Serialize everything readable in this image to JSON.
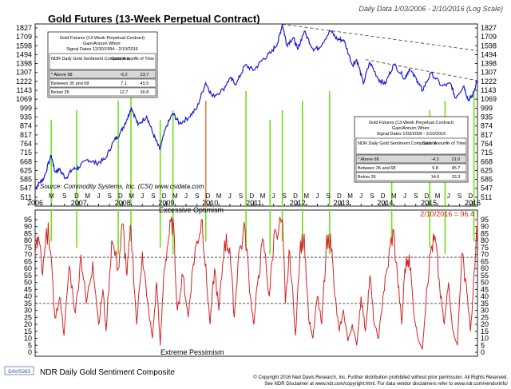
{
  "header": {
    "title": "Gold Futures (13-Week Perpetual Contract)",
    "subtitle": "Daily Data 1/03/2006 - 2/10/2016 (Log Scale)"
  },
  "colors": {
    "price_line": "#1b1bd6",
    "sentiment_line": "#d42222",
    "signal_line": "#6fe01a",
    "signal_line_alt": "#d9834a",
    "axis": "#222222",
    "grid": "#555555"
  },
  "chart_data": [
    {
      "type": "line",
      "title": "Gold Futures (13-Week Perpetual Contract)",
      "scale": "log",
      "yticks": [
        511,
        547,
        585,
        625,
        668,
        715,
        764,
        817,
        874,
        935,
        999,
        1069,
        1143,
        1222,
        1307,
        1398,
        1494,
        1598,
        1709,
        1827
      ],
      "month_ticks": [
        {
          "t": 2006.37,
          "l": "M"
        },
        {
          "t": 2006.67,
          "l": "S"
        },
        {
          "t": 2006.95,
          "l": "D"
        },
        {
          "t": 2007.2,
          "l": "M"
        },
        {
          "t": 2007.45,
          "l": "J"
        },
        {
          "t": 2007.7,
          "l": "S"
        },
        {
          "t": 2007.95,
          "l": "D"
        },
        {
          "t": 2008.2,
          "l": "M"
        },
        {
          "t": 2008.45,
          "l": "J"
        },
        {
          "t": 2008.7,
          "l": "S"
        },
        {
          "t": 2008.95,
          "l": "D"
        },
        {
          "t": 2009.2,
          "l": "M"
        },
        {
          "t": 2009.45,
          "l": "J"
        },
        {
          "t": 2009.7,
          "l": "S"
        },
        {
          "t": 2009.95,
          "l": "D"
        },
        {
          "t": 2010.2,
          "l": "M"
        },
        {
          "t": 2010.45,
          "l": "J"
        },
        {
          "t": 2010.7,
          "l": "S"
        },
        {
          "t": 2010.95,
          "l": "D"
        },
        {
          "t": 2011.2,
          "l": "M"
        },
        {
          "t": 2011.45,
          "l": "J"
        },
        {
          "t": 2011.7,
          "l": "S"
        },
        {
          "t": 2011.95,
          "l": "D"
        },
        {
          "t": 2012.2,
          "l": "M"
        },
        {
          "t": 2012.45,
          "l": "J"
        },
        {
          "t": 2012.7,
          "l": "S"
        },
        {
          "t": 2012.95,
          "l": "D"
        },
        {
          "t": 2013.2,
          "l": "M"
        },
        {
          "t": 2013.45,
          "l": "J"
        },
        {
          "t": 2013.7,
          "l": "S"
        },
        {
          "t": 2013.95,
          "l": "D"
        },
        {
          "t": 2014.2,
          "l": "M"
        },
        {
          "t": 2014.45,
          "l": "J"
        },
        {
          "t": 2014.7,
          "l": "S"
        },
        {
          "t": 2014.95,
          "l": "D"
        },
        {
          "t": 2015.2,
          "l": "M"
        },
        {
          "t": 2015.45,
          "l": "J"
        },
        {
          "t": 2015.7,
          "l": "S"
        },
        {
          "t": 2015.95,
          "l": "D"
        }
      ],
      "year_labels": [
        "2006",
        "2007",
        "2008",
        "2009",
        "2010",
        "2011",
        "2012",
        "2013",
        "2014",
        "2015",
        "2016"
      ],
      "source": "Source: Commodity Systems, Inc. (CSI) www.csidata.com",
      "series": [
        {
          "name": "Gold Futures",
          "points": [
            [
              2006.0,
              545
            ],
            [
              2006.1,
              570
            ],
            [
              2006.2,
              590
            ],
            [
              2006.37,
              700
            ],
            [
              2006.45,
              620
            ],
            [
              2006.55,
              630
            ],
            [
              2006.7,
              590
            ],
            [
              2006.85,
              630
            ],
            [
              2007.0,
              640
            ],
            [
              2007.2,
              680
            ],
            [
              2007.4,
              660
            ],
            [
              2007.6,
              680
            ],
            [
              2007.8,
              780
            ],
            [
              2007.95,
              830
            ],
            [
              2008.1,
              920
            ],
            [
              2008.2,
              1005
            ],
            [
              2008.35,
              880
            ],
            [
              2008.55,
              940
            ],
            [
              2008.7,
              820
            ],
            [
              2008.85,
              730
            ],
            [
              2009.0,
              870
            ],
            [
              2009.15,
              960
            ],
            [
              2009.3,
              890
            ],
            [
              2009.5,
              930
            ],
            [
              2009.7,
              1000
            ],
            [
              2009.9,
              1210
            ],
            [
              2010.05,
              1090
            ],
            [
              2010.3,
              1150
            ],
            [
              2010.45,
              1250
            ],
            [
              2010.6,
              1200
            ],
            [
              2010.8,
              1380
            ],
            [
              2011.0,
              1330
            ],
            [
              2011.2,
              1440
            ],
            [
              2011.4,
              1520
            ],
            [
              2011.55,
              1640
            ],
            [
              2011.65,
              1880
            ],
            [
              2011.75,
              1610
            ],
            [
              2011.9,
              1700
            ],
            [
              2012.0,
              1550
            ],
            [
              2012.15,
              1780
            ],
            [
              2012.35,
              1560
            ],
            [
              2012.5,
              1580
            ],
            [
              2012.75,
              1790
            ],
            [
              2012.9,
              1680
            ],
            [
              2013.05,
              1670
            ],
            [
              2013.25,
              1380
            ],
            [
              2013.35,
              1440
            ],
            [
              2013.5,
              1200
            ],
            [
              2013.65,
              1410
            ],
            [
              2013.85,
              1240
            ],
            [
              2014.0,
              1200
            ],
            [
              2014.2,
              1390
            ],
            [
              2014.45,
              1250
            ],
            [
              2014.55,
              1340
            ],
            [
              2014.75,
              1220
            ],
            [
              2014.85,
              1140
            ],
            [
              2015.05,
              1300
            ],
            [
              2015.3,
              1180
            ],
            [
              2015.5,
              1200
            ],
            [
              2015.6,
              1080
            ],
            [
              2015.8,
              1180
            ],
            [
              2015.9,
              1060
            ],
            [
              2016.0,
              1100
            ],
            [
              2016.11,
              1240
            ]
          ]
        }
      ],
      "resistance_lines": [
        {
          "from": [
            2011.65,
            1880
          ],
          "to": [
            2016.11,
            1540
          ]
        },
        {
          "from": [
            2013.55,
            1440
          ],
          "to": [
            2016.11,
            1230
          ]
        }
      ],
      "tables": [
        {
          "title_lines": [
            "Gold Futures (13-Week Perpetual Contract)",
            "Gain/Annum When:",
            "Signal Dates 12/30/1994 - 2/10/2016"
          ],
          "headers": [
            "NDR Daily Gold Sentiment Composite is",
            "Gain/ Annum",
            "% of Time"
          ],
          "rows": [
            [
              "* Above 68",
              "-6.2",
              "23.7"
            ],
            [
              "Between 35 and 68",
              "7.1",
              "45.5"
            ],
            [
              "Below 35",
              "12.7",
              "30.8"
            ]
          ]
        },
        {
          "title_lines": [
            "Gold Futures (13-Week Perpetual Contract)",
            "Gain/Annum When:",
            "Signal Dates 1/03/2006 - 2/10/2016"
          ],
          "headers": [
            "NDR Daily Gold Sentiment Composite is",
            "Gain/ Annum",
            "% of Time"
          ],
          "rows": [
            [
              "* Above 68",
              "-4.3",
              "21.0"
            ],
            [
              "Between 35 and 68",
              "9.8",
              "45.7"
            ],
            [
              "Below 35",
              "14.6",
              "33.3"
            ]
          ]
        }
      ]
    },
    {
      "type": "line",
      "title": "NDR Daily Gold Sentiment Composite",
      "ylim": [
        0,
        100
      ],
      "yticks": [
        0,
        5,
        10,
        15,
        20,
        25,
        30,
        35,
        40,
        45,
        50,
        55,
        60,
        65,
        70,
        75,
        80,
        85,
        90,
        95
      ],
      "reference_lines": [
        68,
        35
      ],
      "annotations": [
        "Excessive Optimism",
        "Extreme Pessimism",
        "2/10/2016 = 96.4"
      ],
      "series": [
        {
          "name": "NDR Daily Gold Sentiment Composite",
          "points": [
            [
              2006.0,
              70
            ],
            [
              2006.08,
              82
            ],
            [
              2006.17,
              55
            ],
            [
              2006.3,
              93
            ],
            [
              2006.45,
              25
            ],
            [
              2006.58,
              38
            ],
            [
              2006.66,
              12
            ],
            [
              2006.78,
              62
            ],
            [
              2006.92,
              28
            ],
            [
              2007.05,
              70
            ],
            [
              2007.17,
              35
            ],
            [
              2007.32,
              65
            ],
            [
              2007.45,
              20
            ],
            [
              2007.55,
              45
            ],
            [
              2007.62,
              15
            ],
            [
              2007.75,
              80
            ],
            [
              2007.9,
              60
            ],
            [
              2008.0,
              92
            ],
            [
              2008.1,
              55
            ],
            [
              2008.19,
              89
            ],
            [
              2008.32,
              20
            ],
            [
              2008.45,
              72
            ],
            [
              2008.55,
              40
            ],
            [
              2008.68,
              10
            ],
            [
              2008.78,
              50
            ],
            [
              2008.86,
              5
            ],
            [
              2008.95,
              60
            ],
            [
              2009.05,
              82
            ],
            [
              2009.15,
              96
            ],
            [
              2009.25,
              30
            ],
            [
              2009.38,
              55
            ],
            [
              2009.5,
              25
            ],
            [
              2009.6,
              60
            ],
            [
              2009.7,
              80
            ],
            [
              2009.82,
              95
            ],
            [
              2009.92,
              50
            ],
            [
              2010.0,
              20
            ],
            [
              2010.1,
              60
            ],
            [
              2010.2,
              30
            ],
            [
              2010.33,
              80
            ],
            [
              2010.45,
              75
            ],
            [
              2010.55,
              25
            ],
            [
              2010.65,
              70
            ],
            [
              2010.8,
              88
            ],
            [
              2010.92,
              40
            ],
            [
              2011.0,
              20
            ],
            [
              2011.1,
              55
            ],
            [
              2011.22,
              80
            ],
            [
              2011.35,
              40
            ],
            [
              2011.48,
              88
            ],
            [
              2011.65,
              95
            ],
            [
              2011.72,
              35
            ],
            [
              2011.82,
              72
            ],
            [
              2011.95,
              12
            ],
            [
              2012.05,
              70
            ],
            [
              2012.15,
              85
            ],
            [
              2012.25,
              25
            ],
            [
              2012.35,
              10
            ],
            [
              2012.45,
              40
            ],
            [
              2012.55,
              20
            ],
            [
              2012.65,
              75
            ],
            [
              2012.75,
              85
            ],
            [
              2012.85,
              40
            ],
            [
              2012.95,
              15
            ],
            [
              2013.05,
              30
            ],
            [
              2013.15,
              8
            ],
            [
              2013.25,
              20
            ],
            [
              2013.35,
              5
            ],
            [
              2013.45,
              40
            ],
            [
              2013.55,
              15
            ],
            [
              2013.65,
              55
            ],
            [
              2013.75,
              20
            ],
            [
              2013.85,
              10
            ],
            [
              2013.95,
              40
            ],
            [
              2014.05,
              60
            ],
            [
              2014.18,
              88
            ],
            [
              2014.28,
              55
            ],
            [
              2014.38,
              20
            ],
            [
              2014.45,
              60
            ],
            [
              2014.55,
              70
            ],
            [
              2014.65,
              30
            ],
            [
              2014.75,
              10
            ],
            [
              2014.85,
              2
            ],
            [
              2014.95,
              45
            ],
            [
              2015.05,
              75
            ],
            [
              2015.15,
              80
            ],
            [
              2015.25,
              45
            ],
            [
              2015.35,
              20
            ],
            [
              2015.45,
              50
            ],
            [
              2015.55,
              15
            ],
            [
              2015.65,
              5
            ],
            [
              2015.75,
              70
            ],
            [
              2015.85,
              50
            ],
            [
              2015.95,
              15
            ],
            [
              2016.05,
              60
            ],
            [
              2016.11,
              96
            ]
          ]
        }
      ]
    }
  ],
  "signal_dates": [
    2006.37,
    2006.95,
    2007.9,
    2008.19,
    2008.86,
    2009.15,
    2009.9,
    2010.82,
    2011.37,
    2011.65,
    2012.11,
    2012.73,
    2014.15,
    2015.02,
    2015.37,
    2016.03
  ],
  "footer": {
    "badge": "DAVIS263",
    "chart_title": "NDR Daily Gold Sentiment Composite",
    "copyright": "© Copyright 2016 Ned Davis Research, Inc. Further distribution prohibited without prior permission. All Rights Reserved.",
    "disclaimer": "See NDR Disclaimer at www.ndr.com/copyright.html. For data vendor disclaimers refer to www.ndr.com/vendorinfo/"
  }
}
